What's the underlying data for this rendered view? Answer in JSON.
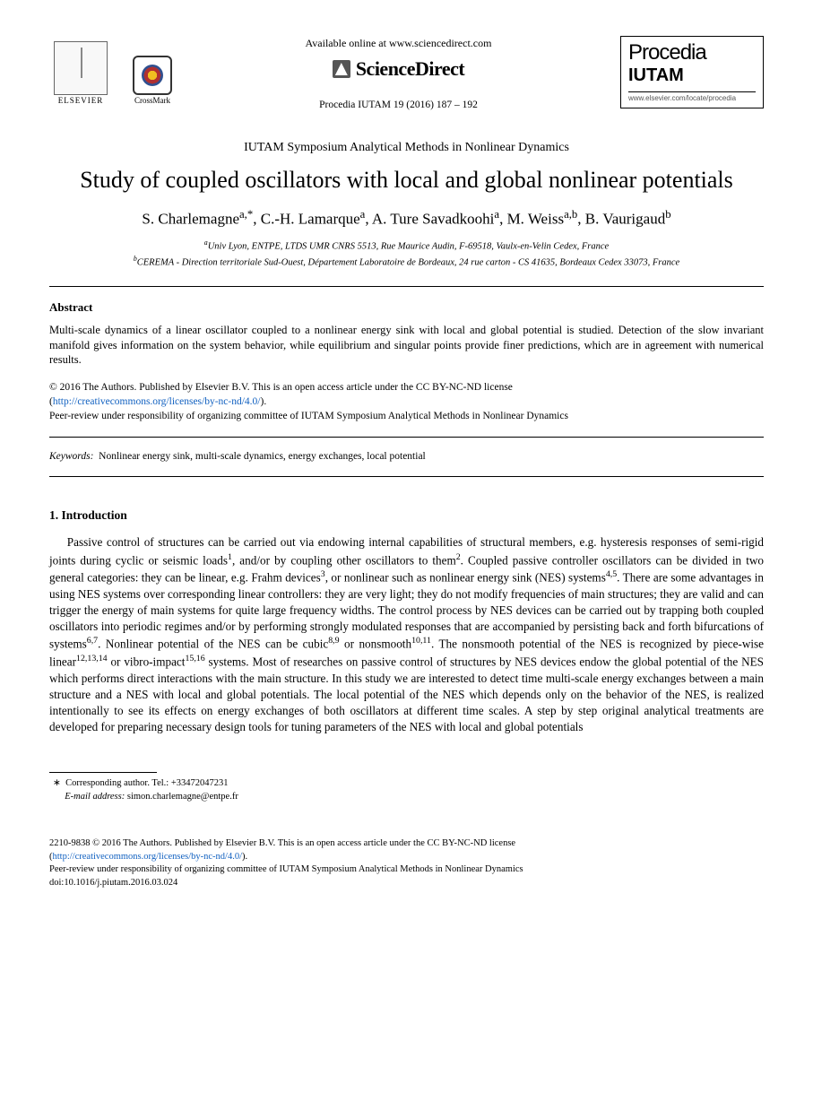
{
  "header": {
    "elsevier_label": "ELSEVIER",
    "crossmark_label": "CrossMark",
    "available_text": "Available online at www.sciencedirect.com",
    "sciencedirect_label": "ScienceDirect",
    "citation": "Procedia IUTAM 19 (2016) 187 – 192",
    "procedia_title": "Procedia",
    "procedia_sub": "IUTAM",
    "procedia_url": "www.elsevier.com/locate/procedia"
  },
  "conference": "IUTAM Symposium Analytical Methods in Nonlinear Dynamics",
  "title": "Study of coupled oscillators with local and global nonlinear potentials",
  "authors_html": "S. Charlemagne<sup>a,*</sup>, C.-H. Lamarque<sup>a</sup>, A. Ture Savadkoohi<sup>a</sup>, M. Weiss<sup>a,b</sup>, B. Vaurigaud<sup>b</sup>",
  "affiliations": {
    "a": "Univ Lyon, ENTPE, LTDS UMR CNRS 5513, Rue Maurice Audin, F-69518, Vaulx-en-Velin Cedex, France",
    "b": "CEREMA - Direction territoriale Sud-Ouest, Département Laboratoire de Bordeaux, 24 rue carton - CS 41635, Bordeaux Cedex 33073, France"
  },
  "abstract": {
    "heading": "Abstract",
    "body": "Multi-scale dynamics of a linear oscillator coupled to a nonlinear energy sink with local and global potential is studied. Detection of the slow invariant manifold gives information on the system behavior, while equilibrium and singular points provide finer predictions, which are in agreement with numerical results."
  },
  "copyright": {
    "line1": "© 2016 The Authors. Published by Elsevier B.V. This is an open access article under the CC BY-NC-ND license",
    "license_url_text": "http://creativecommons.org/licenses/by-nc-nd/4.0/",
    "line2": "Peer-review under responsibility of organizing committee of IUTAM Symposium Analytical Methods in Nonlinear Dynamics"
  },
  "keywords": {
    "label": "Keywords:",
    "text": "Nonlinear energy sink, multi-scale dynamics, energy exchanges, local potential"
  },
  "section1": {
    "heading": "1.  Introduction",
    "body_html": "Passive control of structures can be carried out via endowing internal capabilities of structural members, e.g. hysteresis responses of semi-rigid joints during cyclic or seismic loads<sup>1</sup>, and/or by coupling other oscillators to them<sup>2</sup>. Coupled passive controller oscillators can be divided in two general categories: they can be linear, e.g. Frahm devices<sup>3</sup>, or nonlinear such as nonlinear energy sink (NES) systems<sup>4,5</sup>. There are some advantages in using NES systems over corresponding linear controllers: they are very light; they do not modify frequencies of main structures; they are valid and can trigger the energy of main systems for quite large frequency widths. The control process by NES devices can be carried out by trapping both coupled oscillators into periodic regimes and/or by performing strongly modulated responses that are accompanied by persisting back and forth bifurcations of systems<sup>6,7</sup>. Nonlinear potential of the NES can be cubic<sup>8,9</sup> or nonsmooth<sup>10,11</sup>. The nonsmooth potential of the NES is recognized by piece-wise linear<sup>12,13,14</sup> or vibro-impact<sup>15,16</sup> systems. Most of researches on passive control of structures by NES devices endow the global potential of the NES which performs direct interactions with the main structure. In this study we are interested to detect time multi-scale energy exchanges between a main structure and a NES with local and global potentials. The local potential of the NES which depends only on the behavior of the NES, is realized intentionally to see its effects on energy exchanges of both oscillators at different time scales. A step by step original analytical treatments are developed for preparing necessary design tools for tuning parameters of the NES with local and global potentials"
  },
  "footnote": {
    "star": "∗",
    "corresponding": "Corresponding author. Tel.: +33472047231",
    "email_label": "E-mail address:",
    "email": "simon.charlemagne@entpe.fr"
  },
  "footer": {
    "issn_line": "2210-9838 © 2016 The Authors. Published by Elsevier B.V. This is an open access article under the CC BY-NC-ND license",
    "license_url_text": "http://creativecommons.org/licenses/by-nc-nd/4.0/",
    "peer_review": "Peer-review under responsibility of organizing committee of IUTAM Symposium Analytical Methods in Nonlinear Dynamics",
    "doi": "doi:10.1016/j.piutam.2016.03.024"
  },
  "colors": {
    "text": "#000000",
    "link": "#1060c0",
    "background": "#ffffff"
  }
}
